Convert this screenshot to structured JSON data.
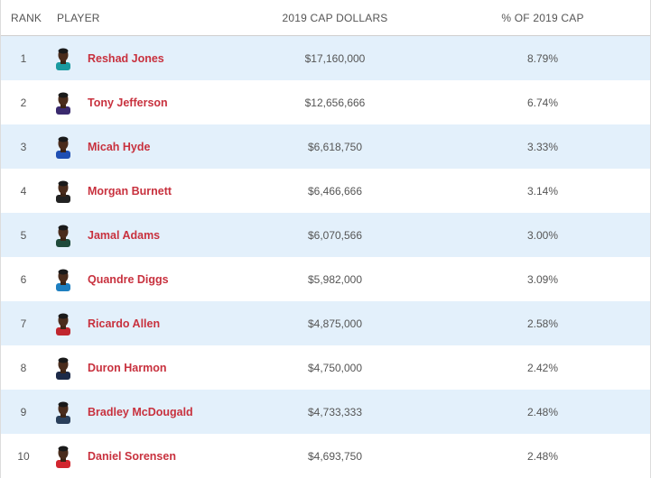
{
  "header": {
    "rank": "RANK",
    "player": "PLAYER",
    "cap": "2019 CAP DOLLARS",
    "pct": "% OF 2019 CAP"
  },
  "rows": [
    {
      "rank": "1",
      "name": "Reshad Jones",
      "cap": "$17,160,000",
      "pct": "8.79%",
      "jersey": "#1a9aa0"
    },
    {
      "rank": "2",
      "name": "Tony Jefferson",
      "cap": "$12,656,666",
      "pct": "6.74%",
      "jersey": "#3a2a6e"
    },
    {
      "rank": "3",
      "name": "Micah Hyde",
      "cap": "$6,618,750",
      "pct": "3.33%",
      "jersey": "#1f4fb3"
    },
    {
      "rank": "4",
      "name": "Morgan Burnett",
      "cap": "$6,466,666",
      "pct": "3.14%",
      "jersey": "#222222"
    },
    {
      "rank": "5",
      "name": "Jamal Adams",
      "cap": "$6,070,566",
      "pct": "3.00%",
      "jersey": "#1f4a3a"
    },
    {
      "rank": "6",
      "name": "Quandre Diggs",
      "cap": "$5,982,000",
      "pct": "3.09%",
      "jersey": "#1e7fc0"
    },
    {
      "rank": "7",
      "name": "Ricardo Allen",
      "cap": "$4,875,000",
      "pct": "2.58%",
      "jersey": "#c0262e"
    },
    {
      "rank": "8",
      "name": "Duron Harmon",
      "cap": "$4,750,000",
      "pct": "2.42%",
      "jersey": "#1c2a48"
    },
    {
      "rank": "9",
      "name": "Bradley McDougald",
      "cap": "$4,733,333",
      "pct": "2.48%",
      "jersey": "#2a3f5a"
    },
    {
      "rank": "10",
      "name": "Daniel Sorensen",
      "cap": "$4,693,750",
      "pct": "2.48%",
      "jersey": "#d2262f"
    }
  ]
}
